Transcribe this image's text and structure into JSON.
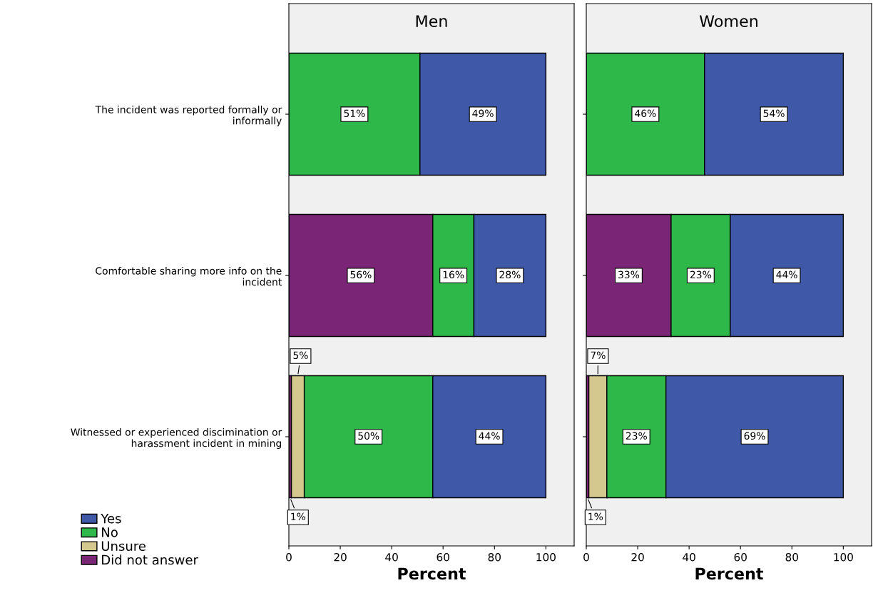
{
  "chart_data": [
    {
      "type": "bar",
      "orientation": "horizontal",
      "stacked": true,
      "title": "Men",
      "xlabel": "Percent",
      "categories": [
        "The incident was reported formally or\ninformally",
        "Comfortable sharing more info on the\nincident",
        "Witnessed or experienced discimination or\nharassment incident in mining"
      ],
      "xlim": [
        0,
        111
      ],
      "xticks": [
        0,
        20,
        40,
        60,
        80,
        100
      ],
      "grid": false,
      "legend": "bottom left",
      "series": [
        {
          "name": "Did not answer",
          "color": "#7b2577",
          "values": [
            null,
            56,
            1
          ],
          "value_labels": [
            null,
            "56%",
            "1%"
          ]
        },
        {
          "name": "Unsure",
          "color": "#d4c88f",
          "values": [
            null,
            null,
            5
          ],
          "value_labels": [
            null,
            null,
            "5%"
          ]
        },
        {
          "name": "No",
          "color": "#2fb84a",
          "values": [
            51,
            16,
            50
          ],
          "value_labels": [
            "51%",
            "16%",
            "50%"
          ]
        },
        {
          "name": "Yes",
          "color": "#3f58a8",
          "values": [
            49,
            28,
            44
          ],
          "value_labels": [
            "49%",
            "28%",
            "44%"
          ]
        }
      ]
    },
    {
      "type": "bar",
      "orientation": "horizontal",
      "stacked": true,
      "title": "Women",
      "xlabel": "Percent",
      "categories": [
        null,
        null,
        null
      ],
      "xlim": [
        0,
        111
      ],
      "xticks": [
        0,
        20,
        40,
        60,
        80,
        100
      ],
      "grid": false,
      "tick_labels": "x",
      "series": [
        {
          "color": "#7b2577",
          "values": [
            null,
            33,
            1
          ],
          "value_labels": [
            null,
            "33%",
            "1%"
          ]
        },
        {
          "color": "#d4c88f",
          "values": [
            null,
            null,
            7
          ],
          "value_labels": [
            null,
            null,
            "7%"
          ]
        },
        {
          "color": "#2fb84a",
          "values": [
            46,
            23,
            23
          ],
          "value_labels": [
            "46%",
            "23%",
            "23%"
          ]
        },
        {
          "color": "#3f58a8",
          "values": [
            54,
            44,
            69
          ],
          "value_labels": [
            "54%",
            "44%",
            "69%"
          ]
        }
      ]
    }
  ]
}
